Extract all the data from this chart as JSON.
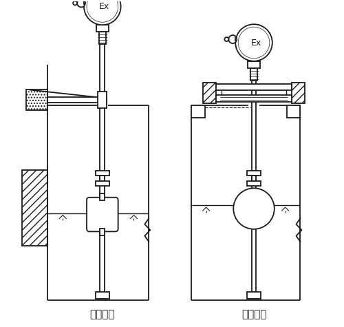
{
  "label_left": "架装固定",
  "label_right": "法兰固定",
  "bg_color": "#ffffff",
  "line_color": "#1a1a1a",
  "lw": 1.3,
  "fig_width": 5.0,
  "fig_height": 4.75,
  "dpi": 100
}
